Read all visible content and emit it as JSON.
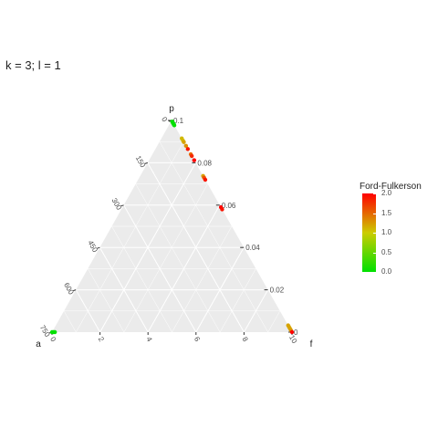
{
  "title": "k = 3; l = 1",
  "chart_data": {
    "type": "ternary-scatter",
    "vertices": {
      "top": "p",
      "left": "a",
      "right": "f"
    },
    "axes": {
      "p": {
        "ticks": [
          "0.1",
          "0.08",
          "0.06",
          "0.04",
          "0.02",
          "0"
        ]
      },
      "f": {
        "ticks": [
          "0",
          "2",
          "4",
          "6",
          "8",
          "10"
        ]
      },
      "a": {
        "ticks": [
          "0",
          "150",
          "300",
          "450",
          "600",
          "750"
        ]
      }
    },
    "color_scale": {
      "title": "Ford-Fulkerson",
      "min": 0,
      "max": 2,
      "ticks": [
        "2.0",
        "1.5",
        "1.0",
        "0.5",
        "0.0"
      ],
      "low_color": "#00e000",
      "mid_color": "#cccc00",
      "high_color": "#ff0000"
    },
    "points": [
      {
        "s": 0.005,
        "c": 0.0
      },
      {
        "s": 0.008,
        "c": 0.0
      },
      {
        "s": 0.011,
        "c": 0.0
      },
      {
        "s": 0.014,
        "c": 0.0
      },
      {
        "s": 0.017,
        "c": 0.0
      },
      {
        "s": 0.02,
        "c": 0.0
      },
      {
        "s": 0.023,
        "c": 0.0
      },
      {
        "s": 0.085,
        "c": 1.1
      },
      {
        "s": 0.095,
        "c": 1.1
      },
      {
        "s": 0.102,
        "c": 1.2
      },
      {
        "s": 0.12,
        "c": 1.3
      },
      {
        "s": 0.135,
        "c": 1.9
      },
      {
        "s": 0.16,
        "c": 1.5
      },
      {
        "s": 0.168,
        "c": 1.8
      },
      {
        "s": 0.188,
        "c": 2.0
      },
      {
        "s": 0.262,
        "c": 1.2
      },
      {
        "s": 0.27,
        "c": 1.6
      },
      {
        "s": 0.28,
        "c": 1.9
      },
      {
        "s": 0.41,
        "c": 2.0
      },
      {
        "s": 0.42,
        "c": 1.9
      },
      {
        "s": 0.968,
        "c": 1.2
      },
      {
        "s": 0.975,
        "c": 1.2
      },
      {
        "s": 0.982,
        "c": 1.2
      },
      {
        "s": 0.988,
        "c": 1.2
      },
      {
        "s": 0.994,
        "c": 1.3
      },
      {
        "s": 1.0,
        "c": 2.0
      },
      {
        "la": 0.0,
        "c": 0.0
      },
      {
        "la": 0.006,
        "c": 0.0
      },
      {
        "la": 0.012,
        "c": 0.0
      }
    ]
  }
}
